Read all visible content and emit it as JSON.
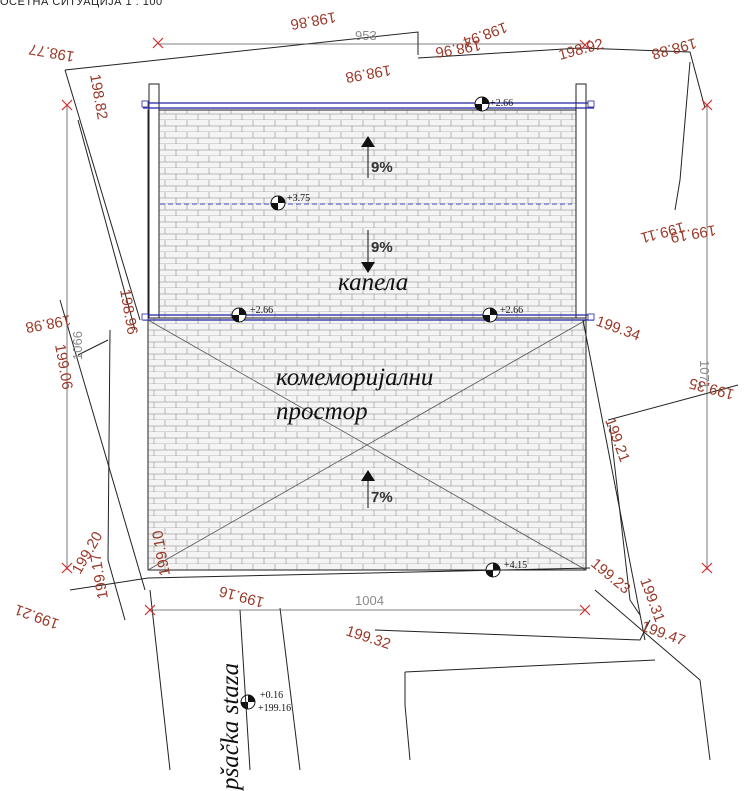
{
  "header": {
    "title": "ОСЕТНА СИТУАЦИЈА 1 : 100"
  },
  "rooms": {
    "chapel": "капела",
    "commemorative_line1": "комеморијални",
    "commemorative_line2": "простор"
  },
  "slopes": {
    "upper_up": "9%",
    "upper_down": "9%",
    "lower": "7%"
  },
  "dimensions": {
    "top": "953",
    "left": "1066",
    "right": "1071",
    "bottom": "1004"
  },
  "levels": {
    "ridge_left_top": "+2.66",
    "mid": "+3.75",
    "left_gutter": "+2.66",
    "right_gutter": "+2.66",
    "bottom_corner": "+4.15",
    "walkway_rel": "+0.16",
    "walkway_abs": "+199.16"
  },
  "elevations": [
    "198.86",
    "198.98",
    "198.94",
    "198.96",
    "198.92",
    "198.88",
    "198.77",
    "198.82",
    "199.19",
    "199.11",
    "198.96",
    "198.98",
    "199.06",
    "199.34",
    "199.35",
    "199.21",
    "199.17",
    "199.20",
    "199.10",
    "199.21",
    "199.16",
    "199.23",
    "199.31",
    "199.47",
    "199.32"
  ],
  "walkway": {
    "label": "pšačka staza"
  }
}
